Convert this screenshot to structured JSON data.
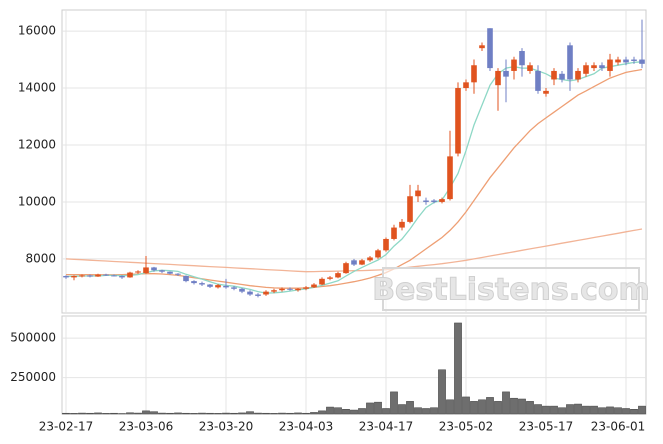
{
  "chart_data": {
    "type": "candlestick",
    "watermark": "BestListens.com",
    "categories": [
      "23-02-17",
      null,
      null,
      null,
      null,
      null,
      null,
      null,
      null,
      null,
      "23-03-06",
      null,
      null,
      null,
      null,
      null,
      null,
      null,
      null,
      null,
      "23-03-20",
      null,
      null,
      null,
      null,
      null,
      null,
      null,
      null,
      null,
      "23-04-03",
      null,
      null,
      null,
      null,
      null,
      null,
      null,
      null,
      null,
      "23-04-17",
      null,
      null,
      null,
      null,
      null,
      null,
      null,
      null,
      null,
      "23-05-02",
      null,
      null,
      null,
      null,
      null,
      null,
      null,
      null,
      null,
      "23-05-17",
      null,
      null,
      null,
      null,
      null,
      null,
      null,
      null,
      null,
      "23-06-01",
      null,
      null
    ],
    "open": [
      7400,
      7350,
      7400,
      7420,
      7380,
      7450,
      7420,
      7400,
      7350,
      7520,
      7500,
      7700,
      7600,
      7550,
      7480,
      7400,
      7220,
      7150,
      7100,
      7000,
      7050,
      7000,
      6950,
      6850,
      6750,
      6750,
      6850,
      6900,
      6950,
      6900,
      6950,
      7000,
      7100,
      7300,
      7350,
      7500,
      7950,
      7800,
      7950,
      8050,
      8300,
      8700,
      9100,
      9300,
      10200,
      10050,
      10050,
      10000,
      10100,
      11700,
      14000,
      14200,
      15400,
      16100,
      14100,
      14600,
      14600,
      15300,
      14600,
      14600,
      13800,
      14300,
      14500,
      15500,
      14300,
      14500,
      14700,
      14800,
      14600,
      14900,
      15000,
      15000,
      15000
    ],
    "high": [
      7420,
      7420,
      7450,
      7450,
      7480,
      7480,
      7450,
      7420,
      7550,
      7600,
      8100,
      7720,
      7620,
      7560,
      7500,
      7420,
      7250,
      7200,
      7120,
      7120,
      7300,
      7050,
      6980,
      6900,
      6800,
      6900,
      6950,
      7000,
      7000,
      6980,
      7050,
      7150,
      7350,
      7400,
      7550,
      7900,
      8000,
      8000,
      8100,
      8350,
      8750,
      9200,
      9400,
      10600,
      10600,
      10150,
      10100,
      10150,
      12500,
      14200,
      14300,
      15000,
      15600,
      16100,
      14700,
      15000,
      15100,
      15400,
      14900,
      14800,
      14000,
      14700,
      14600,
      15600,
      14700,
      14900,
      14900,
      14900,
      15200,
      15100,
      15100,
      15100,
      16400
    ],
    "low": [
      7300,
      7250,
      7350,
      7350,
      7370,
      7400,
      7380,
      7300,
      7340,
      7480,
      7480,
      7550,
      7500,
      7450,
      7400,
      7180,
      7100,
      7050,
      6980,
      6960,
      6950,
      6900,
      6800,
      6700,
      6650,
      6700,
      6800,
      6850,
      6880,
      6850,
      6900,
      6980,
      7080,
      7250,
      7320,
      7480,
      7750,
      7780,
      7900,
      8000,
      8250,
      8650,
      9000,
      9250,
      10000,
      9900,
      9950,
      9950,
      10050,
      11600,
      13900,
      13800,
      15300,
      14600,
      13200,
      13500,
      14300,
      14400,
      14500,
      13800,
      13700,
      14100,
      14200,
      13900,
      14200,
      14400,
      14600,
      14600,
      14400,
      14800,
      14800,
      14850,
      14700
    ],
    "close": [
      7350,
      7400,
      7420,
      7380,
      7450,
      7420,
      7400,
      7350,
      7520,
      7560,
      7700,
      7600,
      7550,
      7480,
      7450,
      7220,
      7150,
      7100,
      7020,
      7080,
      7000,
      6950,
      6850,
      6750,
      6700,
      6850,
      6900,
      6950,
      6920,
      6950,
      7000,
      7100,
      7300,
      7350,
      7500,
      7850,
      7800,
      7950,
      8050,
      8300,
      8700,
      9100,
      9300,
      10200,
      10400,
      10000,
      10000,
      10100,
      11600,
      14000,
      14200,
      14800,
      15500,
      14700,
      14600,
      14400,
      15000,
      14800,
      14800,
      13900,
      13900,
      14600,
      14300,
      14300,
      14600,
      14800,
      14800,
      14700,
      15000,
      15000,
      14900,
      14950,
      14850
    ],
    "up_color": "#e0531f",
    "down_color": "#6f7fc4",
    "ylim": [
      6100,
      16740
    ],
    "yticks": [
      8000,
      10000,
      12000,
      14000,
      16000
    ],
    "grid": true,
    "lines": [
      {
        "color": "#f2b497",
        "values": [
          8000,
          7985,
          7970,
          7955,
          7940,
          7925,
          7910,
          7895,
          7880,
          7865,
          7850,
          7835,
          7820,
          7805,
          7790,
          7775,
          7760,
          7745,
          7730,
          7715,
          7700,
          7685,
          7670,
          7655,
          7640,
          7625,
          7610,
          7595,
          7580,
          7565,
          7550,
          7555,
          7560,
          7565,
          7570,
          7580,
          7585,
          7590,
          7600,
          7610,
          7620,
          7650,
          7680,
          7710,
          7740,
          7770,
          7800,
          7830,
          7870,
          7910,
          7950,
          8000,
          8050,
          8100,
          8150,
          8200,
          8250,
          8300,
          8350,
          8400,
          8450,
          8500,
          8550,
          8600,
          8650,
          8700,
          8750,
          8800,
          8850,
          8900,
          8950,
          9000,
          9050
        ]
      },
      {
        "color": "#ee9f74",
        "values": [
          7450,
          7450,
          7450,
          7450,
          7440,
          7440,
          7440,
          7450,
          7460,
          7470,
          7480,
          7480,
          7470,
          7450,
          7420,
          7380,
          7340,
          7300,
          7260,
          7220,
          7180,
          7140,
          7100,
          7060,
          7030,
          7000,
          6980,
          6970,
          6970,
          6970,
          6980,
          7000,
          7030,
          7060,
          7100,
          7150,
          7200,
          7260,
          7330,
          7420,
          7520,
          7650,
          7800,
          7950,
          8150,
          8350,
          8550,
          8750,
          9000,
          9300,
          9650,
          10050,
          10450,
          10850,
          11200,
          11550,
          11900,
          12200,
          12500,
          12750,
          12950,
          13150,
          13350,
          13550,
          13750,
          13900,
          14050,
          14200,
          14350,
          14450,
          14550,
          14600,
          14650
        ]
      },
      {
        "color": "#8ed8c6",
        "values": [
          7380,
          7390,
          7400,
          7400,
          7400,
          7420,
          7420,
          7410,
          7420,
          7450,
          7520,
          7580,
          7600,
          7590,
          7560,
          7460,
          7370,
          7290,
          7200,
          7110,
          7070,
          7040,
          6990,
          6930,
          6850,
          6800,
          6810,
          6830,
          6870,
          6910,
          6950,
          7000,
          7070,
          7150,
          7230,
          7400,
          7560,
          7700,
          7830,
          7960,
          8150,
          8450,
          8700,
          9050,
          9450,
          9800,
          9980,
          10070,
          10500,
          11000,
          11800,
          12700,
          13400,
          14100,
          14500,
          14700,
          14750,
          14700,
          14700,
          14600,
          14500,
          14350,
          14300,
          14250,
          14300,
          14400,
          14500,
          14700,
          14750,
          14800,
          14850,
          14900,
          14920
        ]
      }
    ],
    "volume": {
      "color": "#6e6e6e",
      "ylim": [
        20000,
        640000
      ],
      "yticks": [
        250000,
        500000
      ],
      "values": [
        25000,
        24000,
        26000,
        25000,
        27000,
        24000,
        25000,
        23000,
        28000,
        26000,
        40000,
        35000,
        26000,
        25000,
        27000,
        25000,
        24000,
        26000,
        25000,
        24000,
        26000,
        25000,
        27000,
        35000,
        26000,
        25000,
        24000,
        26000,
        25000,
        27000,
        25000,
        30000,
        40000,
        64000,
        60000,
        50000,
        45000,
        55000,
        90000,
        95000,
        55000,
        160000,
        80000,
        100000,
        60000,
        55000,
        60000,
        300000,
        110000,
        596000,
        128000,
        100000,
        110000,
        125000,
        100000,
        160000,
        120000,
        115000,
        100000,
        80000,
        70000,
        70000,
        60000,
        80000,
        83000,
        70000,
        70000,
        60000,
        65000,
        60000,
        55000,
        50000,
        70000
      ]
    }
  }
}
